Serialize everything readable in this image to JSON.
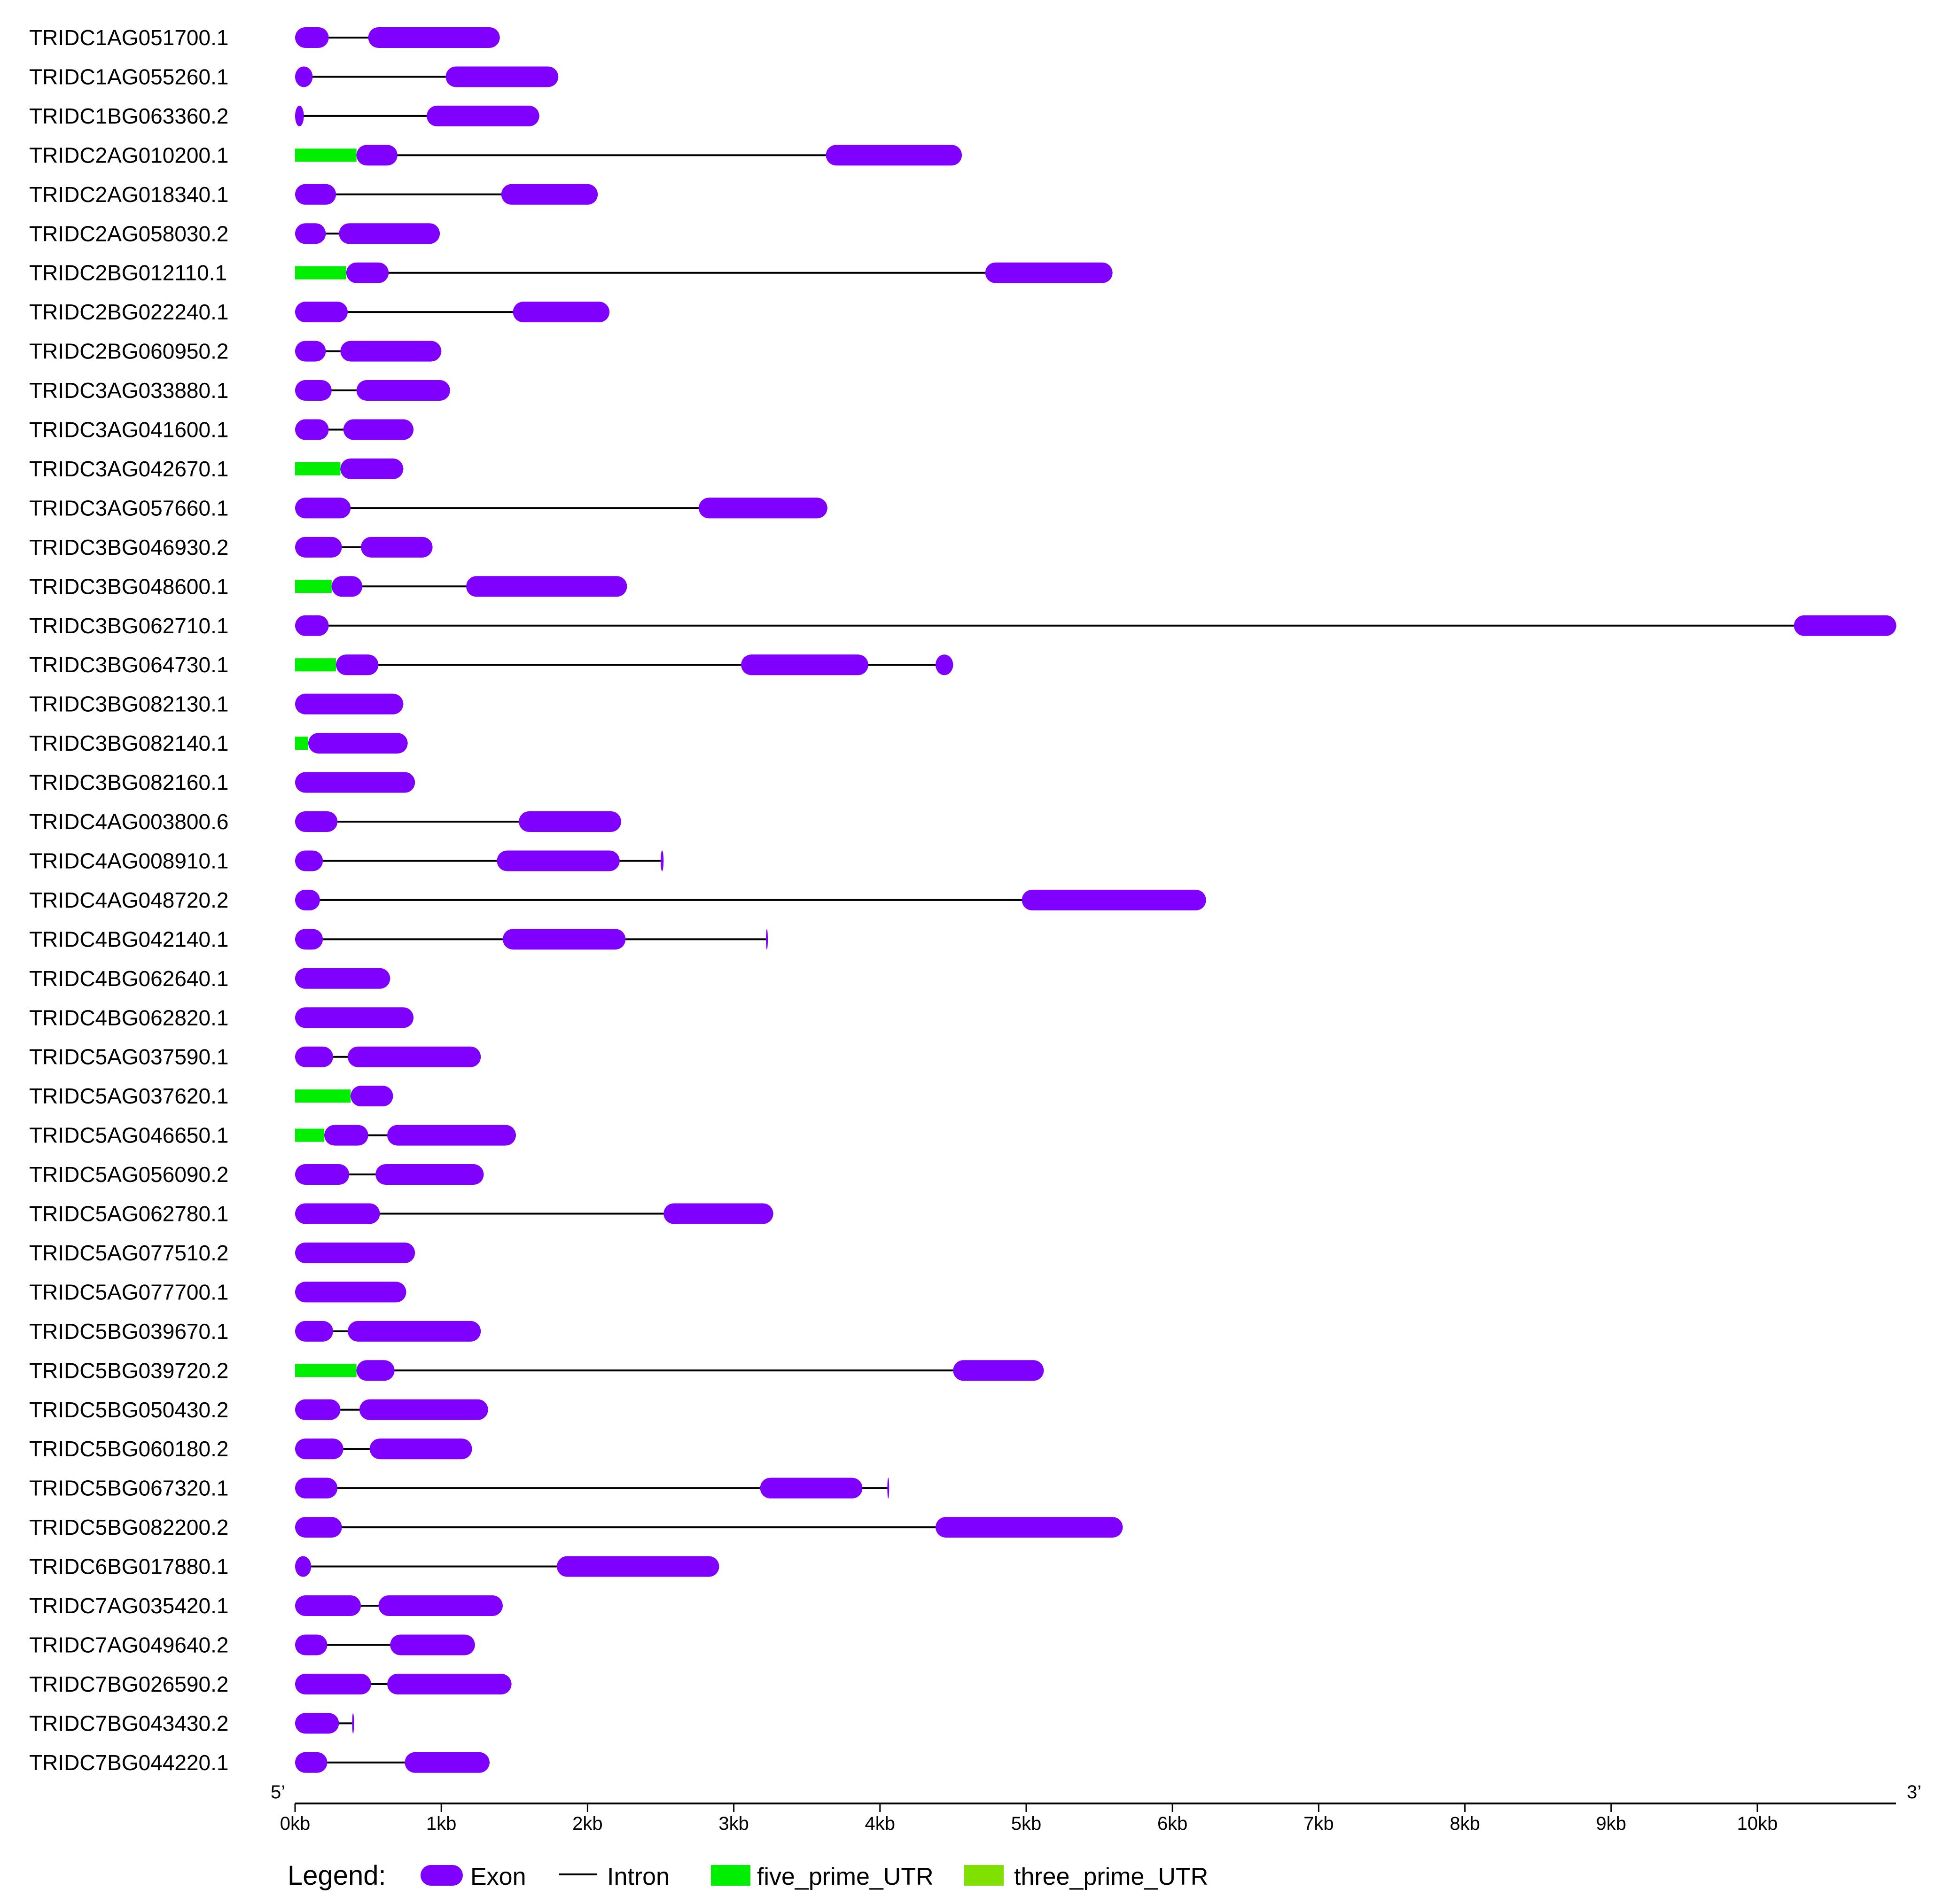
{
  "colors": {
    "exon": "#7f00ff",
    "intron": "#000000",
    "five_prime_UTR": "#00ee00",
    "three_prime_UTR": "#80e000"
  },
  "axis": {
    "unit": "kb",
    "min": 0,
    "max": 10.95,
    "ticks": [
      0,
      1,
      2,
      3,
      4,
      5,
      6,
      7,
      8,
      9,
      10
    ],
    "tick_labels": [
      "0kb",
      "1kb",
      "2kb",
      "3kb",
      "4kb",
      "5kb",
      "6kb",
      "7kb",
      "8kb",
      "9kb",
      "10kb"
    ],
    "five_prime_label": "5’",
    "three_prime_label": "3’"
  },
  "legend": {
    "title": "Legend:",
    "items": [
      {
        "label": "Exon",
        "type": "exon"
      },
      {
        "label": "Intron",
        "type": "intron"
      },
      {
        "label": "five_prime_UTR",
        "type": "five_prime_UTR"
      },
      {
        "label": "three_prime_UTR",
        "type": "three_prime_UTR"
      }
    ]
  },
  "genes": [
    {
      "name": "TRIDC1AG051700.1",
      "end": 1.4,
      "exons": [
        [
          0,
          0.23
        ],
        [
          0.5,
          1.4
        ]
      ],
      "utr5": []
    },
    {
      "name": "TRIDC1AG055260.1",
      "end": 1.8,
      "exons": [
        [
          0,
          0.12
        ],
        [
          1.03,
          1.8
        ]
      ],
      "utr5": []
    },
    {
      "name": "TRIDC1BG063360.2",
      "end": 1.67,
      "exons": [
        [
          0,
          0.06
        ],
        [
          0.9,
          1.67
        ]
      ],
      "utr5": []
    },
    {
      "name": "TRIDC2AG010200.1",
      "end": 4.56,
      "exons": [
        [
          0.42,
          0.7
        ],
        [
          3.63,
          4.56
        ]
      ],
      "utr5": [
        [
          0,
          0.42
        ]
      ]
    },
    {
      "name": "TRIDC2AG018340.1",
      "end": 2.07,
      "exons": [
        [
          0,
          0.28
        ],
        [
          1.41,
          2.07
        ]
      ],
      "utr5": []
    },
    {
      "name": "TRIDC2AG058030.2",
      "end": 0.99,
      "exons": [
        [
          0,
          0.21
        ],
        [
          0.3,
          0.99
        ]
      ],
      "utr5": []
    },
    {
      "name": "TRIDC2BG012110.1",
      "end": 5.59,
      "exons": [
        [
          0.35,
          0.64
        ],
        [
          4.72,
          5.59
        ]
      ],
      "utr5": [
        [
          0,
          0.35
        ]
      ]
    },
    {
      "name": "TRIDC2BG022240.1",
      "end": 2.15,
      "exons": [
        [
          0,
          0.36
        ],
        [
          1.49,
          2.15
        ]
      ],
      "utr5": []
    },
    {
      "name": "TRIDC2BG060950.2",
      "end": 1.0,
      "exons": [
        [
          0,
          0.21
        ],
        [
          0.31,
          1.0
        ]
      ],
      "utr5": []
    },
    {
      "name": "TRIDC3AG033880.1",
      "end": 1.06,
      "exons": [
        [
          0,
          0.25
        ],
        [
          0.42,
          1.06
        ]
      ],
      "utr5": []
    },
    {
      "name": "TRIDC3AG041600.1",
      "end": 0.81,
      "exons": [
        [
          0,
          0.23
        ],
        [
          0.33,
          0.81
        ]
      ],
      "utr5": []
    },
    {
      "name": "TRIDC3AG042670.1",
      "end": 0.74,
      "exons": [
        [
          0.31,
          0.74
        ]
      ],
      "utr5": [
        [
          0,
          0.31
        ]
      ]
    },
    {
      "name": "TRIDC3AG057660.1",
      "end": 3.64,
      "exons": [
        [
          0,
          0.38
        ],
        [
          2.76,
          3.64
        ]
      ],
      "utr5": []
    },
    {
      "name": "TRIDC3BG046930.2",
      "end": 0.94,
      "exons": [
        [
          0,
          0.32
        ],
        [
          0.45,
          0.94
        ]
      ],
      "utr5": []
    },
    {
      "name": "TRIDC3BG048600.1",
      "end": 2.27,
      "exons": [
        [
          0.25,
          0.46
        ],
        [
          1.17,
          2.27
        ]
      ],
      "utr5": [
        [
          0,
          0.25
        ]
      ]
    },
    {
      "name": "TRIDC3BG062710.1",
      "end": 10.95,
      "exons": [
        [
          0,
          0.23
        ],
        [
          10.25,
          10.95
        ]
      ],
      "utr5": []
    },
    {
      "name": "TRIDC3BG064730.1",
      "end": 4.5,
      "exons": [
        [
          0.28,
          0.57
        ],
        [
          3.05,
          3.92
        ],
        [
          4.38,
          4.5
        ]
      ],
      "utr5": [
        [
          0,
          0.28
        ]
      ]
    },
    {
      "name": "TRIDC3BG082130.1",
      "end": 0.74,
      "exons": [
        [
          0,
          0.74
        ]
      ],
      "utr5": []
    },
    {
      "name": "TRIDC3BG082140.1",
      "end": 0.77,
      "exons": [
        [
          0.09,
          0.77
        ]
      ],
      "utr5": [
        [
          0,
          0.09
        ]
      ]
    },
    {
      "name": "TRIDC3BG082160.1",
      "end": 0.82,
      "exons": [
        [
          0,
          0.82
        ]
      ],
      "utr5": []
    },
    {
      "name": "TRIDC4AG003800.6",
      "end": 2.23,
      "exons": [
        [
          0,
          0.29
        ],
        [
          1.53,
          2.23
        ]
      ],
      "utr5": []
    },
    {
      "name": "TRIDC4AG008910.1",
      "end": 2.52,
      "exons": [
        [
          0,
          0.19
        ],
        [
          1.38,
          2.22
        ],
        [
          2.5,
          2.52
        ]
      ],
      "utr5": []
    },
    {
      "name": "TRIDC4AG048720.2",
      "end": 6.23,
      "exons": [
        [
          0,
          0.17
        ],
        [
          4.97,
          6.23
        ]
      ],
      "utr5": []
    },
    {
      "name": "TRIDC4BG042140.1",
      "end": 3.23,
      "exons": [
        [
          0,
          0.19
        ],
        [
          1.42,
          2.26
        ],
        [
          3.22,
          3.23
        ]
      ],
      "utr5": []
    },
    {
      "name": "TRIDC4BG062640.1",
      "end": 0.65,
      "exons": [
        [
          0,
          0.65
        ]
      ],
      "utr5": []
    },
    {
      "name": "TRIDC4BG062820.1",
      "end": 0.81,
      "exons": [
        [
          0,
          0.81
        ]
      ],
      "utr5": []
    },
    {
      "name": "TRIDC5AG037590.1",
      "end": 1.27,
      "exons": [
        [
          0,
          0.26
        ],
        [
          0.36,
          1.27
        ]
      ],
      "utr5": []
    },
    {
      "name": "TRIDC5AG037620.1",
      "end": 0.67,
      "exons": [
        [
          0.38,
          0.67
        ]
      ],
      "utr5": [
        [
          0,
          0.38
        ]
      ]
    },
    {
      "name": "TRIDC5AG046650.1",
      "end": 1.51,
      "exons": [
        [
          0.2,
          0.5
        ],
        [
          0.63,
          1.51
        ]
      ],
      "utr5": [
        [
          0,
          0.2
        ]
      ]
    },
    {
      "name": "TRIDC5AG056090.2",
      "end": 1.29,
      "exons": [
        [
          0,
          0.37
        ],
        [
          0.55,
          1.29
        ]
      ],
      "utr5": []
    },
    {
      "name": "TRIDC5AG062780.1",
      "end": 3.27,
      "exons": [
        [
          0,
          0.58
        ],
        [
          2.52,
          3.27
        ]
      ],
      "utr5": []
    },
    {
      "name": "TRIDC5AG077510.2",
      "end": 0.82,
      "exons": [
        [
          0,
          0.82
        ]
      ],
      "utr5": []
    },
    {
      "name": "TRIDC5AG077700.1",
      "end": 0.76,
      "exons": [
        [
          0,
          0.76
        ]
      ],
      "utr5": []
    },
    {
      "name": "TRIDC5BG039670.1",
      "end": 1.27,
      "exons": [
        [
          0,
          0.26
        ],
        [
          0.36,
          1.27
        ]
      ],
      "utr5": []
    },
    {
      "name": "TRIDC5BG039720.2",
      "end": 5.12,
      "exons": [
        [
          0.42,
          0.68
        ],
        [
          4.5,
          5.12
        ]
      ],
      "utr5": [
        [
          0,
          0.42
        ]
      ]
    },
    {
      "name": "TRIDC5BG050430.2",
      "end": 1.32,
      "exons": [
        [
          0,
          0.31
        ],
        [
          0.44,
          1.32
        ]
      ],
      "utr5": []
    },
    {
      "name": "TRIDC5BG060180.2",
      "end": 1.21,
      "exons": [
        [
          0,
          0.33
        ],
        [
          0.51,
          1.21
        ]
      ],
      "utr5": []
    },
    {
      "name": "TRIDC5BG067320.1",
      "end": 4.06,
      "exons": [
        [
          0,
          0.29
        ],
        [
          3.18,
          3.88
        ],
        [
          4.05,
          4.06
        ]
      ],
      "utr5": []
    },
    {
      "name": "TRIDC5BG082200.2",
      "end": 5.66,
      "exons": [
        [
          0,
          0.32
        ],
        [
          4.38,
          5.66
        ]
      ],
      "utr5": []
    },
    {
      "name": "TRIDC6BG017880.1",
      "end": 2.9,
      "exons": [
        [
          0,
          0.11
        ],
        [
          1.79,
          2.9
        ]
      ],
      "utr5": []
    },
    {
      "name": "TRIDC7AG035420.1",
      "end": 1.42,
      "exons": [
        [
          0,
          0.45
        ],
        [
          0.57,
          1.42
        ]
      ],
      "utr5": []
    },
    {
      "name": "TRIDC7AG049640.2",
      "end": 1.23,
      "exons": [
        [
          0,
          0.22
        ],
        [
          0.65,
          1.23
        ]
      ],
      "utr5": []
    },
    {
      "name": "TRIDC7BG026590.2",
      "end": 1.48,
      "exons": [
        [
          0,
          0.52
        ],
        [
          0.63,
          1.48
        ]
      ],
      "utr5": []
    },
    {
      "name": "TRIDC7BG043430.2",
      "end": 0.4,
      "exons": [
        [
          0,
          0.3
        ],
        [
          0.39,
          0.4
        ]
      ],
      "utr5": []
    },
    {
      "name": "TRIDC7BG044220.1",
      "end": 1.33,
      "exons": [
        [
          0,
          0.22
        ],
        [
          0.75,
          1.33
        ]
      ],
      "utr5": []
    }
  ]
}
